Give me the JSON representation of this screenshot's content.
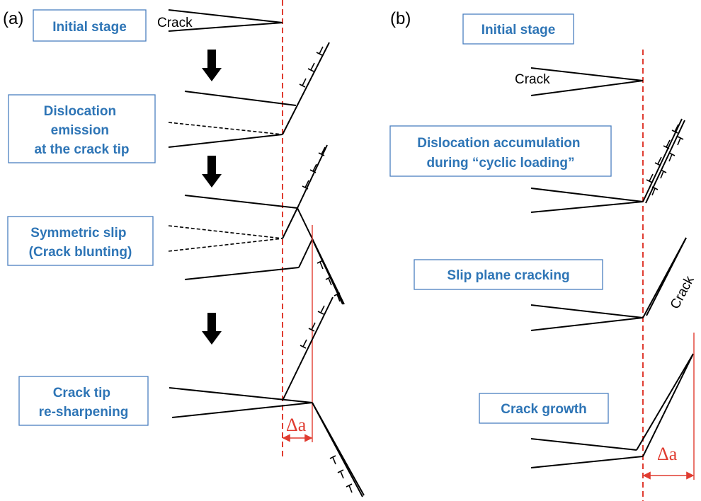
{
  "panel_a": {
    "letter": "(a)",
    "stages": [
      {
        "lines": [
          "Initial stage"
        ]
      },
      {
        "lines": [
          "Dislocation",
          "emission",
          "at the crack tip"
        ]
      },
      {
        "lines": [
          "Symmetric slip",
          "(Crack blunting)"
        ]
      },
      {
        "lines": [
          "Crack tip",
          "re-sharpening"
        ]
      }
    ],
    "crack_label": "Crack",
    "delta_label": "Δa"
  },
  "panel_b": {
    "letter": "(b)",
    "stages": [
      {
        "lines": [
          "Initial stage"
        ]
      },
      {
        "lines": [
          "Dislocation accumulation",
          "during “cyclic loading”"
        ]
      },
      {
        "lines": [
          "Slip plane cracking"
        ]
      },
      {
        "lines": [
          "Crack growth"
        ]
      }
    ],
    "crack_label": "Crack",
    "slip_crack_label": "Crack",
    "delta_label": "Δa"
  },
  "colors": {
    "box_text": "#2e75b6",
    "box_border": "#4a7fc0",
    "reference_line": "#e03c31",
    "ink": "#000000"
  }
}
